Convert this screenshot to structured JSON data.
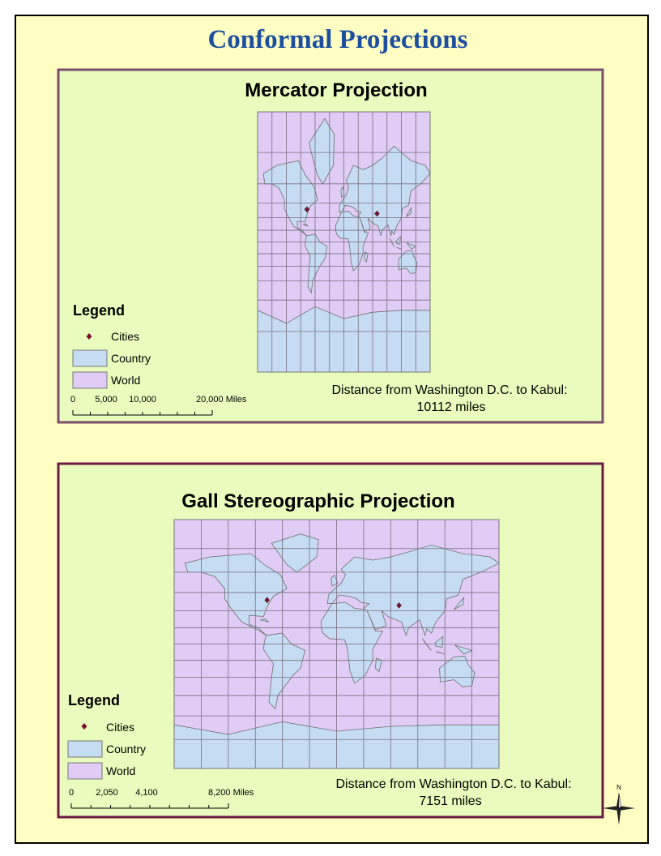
{
  "title": "Conformal Projections",
  "maps": [
    {
      "title": "Mercator Projection",
      "legend": {
        "title": "Legend",
        "items": [
          "Cities",
          "Country",
          "World"
        ]
      },
      "scale_bar": [
        "0",
        "5,000",
        "10,000",
        "20,000 Miles"
      ],
      "distance": {
        "label": "Distance from Washington D.C. to Kabul:",
        "value": "10112 miles"
      }
    },
    {
      "title": "Gall Stereographic Projection",
      "legend": {
        "title": "Legend",
        "items": [
          "Cities",
          "Country",
          "World"
        ]
      },
      "scale_bar": [
        "0",
        "2,050",
        "4,100",
        "8,200 Miles"
      ],
      "distance": {
        "label": "Distance from Washington D.C. to Kabul:",
        "value": "7151 miles"
      }
    }
  ],
  "north_arrow": "N"
}
